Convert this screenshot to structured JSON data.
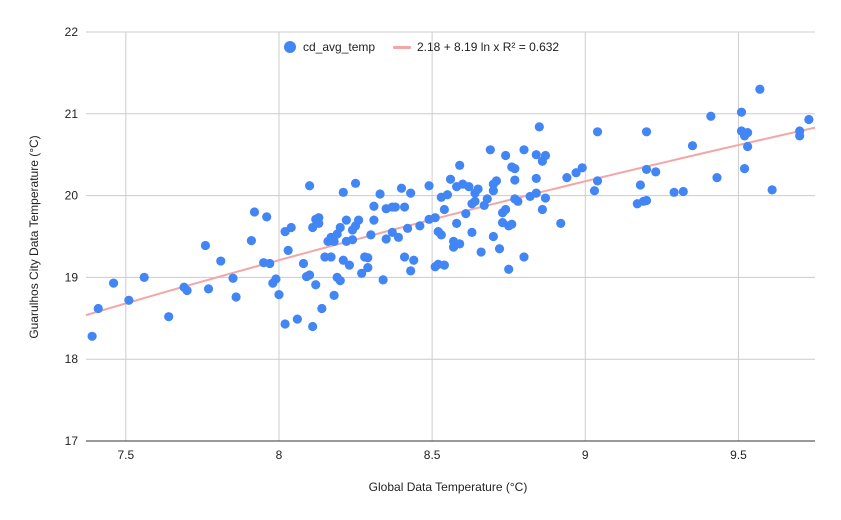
{
  "chart_data": {
    "type": "scatter",
    "title": "",
    "xlabel": "Global Data Temperature (°C)",
    "ylabel": "Guarulhos City Data Temperature (°C)",
    "xlim": [
      7.37,
      9.75
    ],
    "ylim": [
      17,
      22
    ],
    "x_ticks": [
      "7.5",
      "8",
      "8.5",
      "9",
      "9.5"
    ],
    "y_ticks": [
      "17",
      "18",
      "19",
      "20",
      "21",
      "22"
    ],
    "grid": true,
    "legend_position": "top",
    "legend": [
      "cd_avg_temp",
      "2.18 + 8.19 ln x R² = 0.632"
    ],
    "series": [
      {
        "name": "cd_avg_temp",
        "color": "#4285f4",
        "points": [
          [
            7.39,
            18.28
          ],
          [
            7.41,
            18.62
          ],
          [
            7.46,
            18.93
          ],
          [
            7.51,
            18.72
          ],
          [
            7.56,
            19.0
          ],
          [
            7.64,
            18.52
          ],
          [
            7.69,
            18.88
          ],
          [
            7.7,
            18.84
          ],
          [
            7.76,
            19.39
          ],
          [
            7.77,
            18.86
          ],
          [
            7.81,
            19.2
          ],
          [
            7.85,
            18.99
          ],
          [
            7.86,
            18.76
          ],
          [
            7.91,
            19.45
          ],
          [
            7.92,
            19.8
          ],
          [
            7.95,
            19.18
          ],
          [
            7.96,
            19.74
          ],
          [
            7.97,
            19.17
          ],
          [
            7.98,
            18.93
          ],
          [
            7.99,
            18.98
          ],
          [
            8.0,
            18.79
          ],
          [
            8.02,
            19.56
          ],
          [
            8.03,
            19.33
          ],
          [
            8.02,
            18.43
          ],
          [
            8.04,
            19.61
          ],
          [
            8.06,
            18.49
          ],
          [
            8.08,
            19.17
          ],
          [
            8.09,
            19.01
          ],
          [
            8.1,
            19.03
          ],
          [
            8.1,
            20.12
          ],
          [
            8.11,
            18.4
          ],
          [
            8.11,
            19.61
          ],
          [
            8.12,
            19.71
          ],
          [
            8.12,
            18.91
          ],
          [
            8.13,
            19.66
          ],
          [
            8.13,
            19.73
          ],
          [
            8.14,
            18.62
          ],
          [
            8.15,
            19.25
          ],
          [
            8.16,
            19.44
          ],
          [
            8.17,
            19.25
          ],
          [
            8.17,
            19.49
          ],
          [
            8.18,
            18.78
          ],
          [
            8.18,
            19.44
          ],
          [
            8.19,
            19.0
          ],
          [
            8.19,
            19.53
          ],
          [
            8.2,
            18.96
          ],
          [
            8.2,
            19.61
          ],
          [
            8.21,
            19.21
          ],
          [
            8.21,
            20.04
          ],
          [
            8.22,
            19.7
          ],
          [
            8.22,
            19.44
          ],
          [
            8.23,
            19.15
          ],
          [
            8.24,
            19.46
          ],
          [
            8.24,
            19.58
          ],
          [
            8.25,
            19.63
          ],
          [
            8.26,
            19.7
          ],
          [
            8.25,
            20.15
          ],
          [
            8.27,
            19.05
          ],
          [
            8.28,
            19.25
          ],
          [
            8.29,
            19.24
          ],
          [
            8.29,
            19.12
          ],
          [
            8.3,
            19.52
          ],
          [
            8.31,
            19.7
          ],
          [
            8.31,
            19.87
          ],
          [
            8.33,
            20.02
          ],
          [
            8.34,
            18.97
          ],
          [
            8.35,
            19.84
          ],
          [
            8.35,
            19.47
          ],
          [
            8.37,
            19.86
          ],
          [
            8.37,
            19.55
          ],
          [
            8.38,
            19.86
          ],
          [
            8.39,
            19.49
          ],
          [
            8.4,
            20.09
          ],
          [
            8.41,
            19.86
          ],
          [
            8.41,
            19.25
          ],
          [
            8.42,
            19.6
          ],
          [
            8.43,
            20.03
          ],
          [
            8.43,
            19.08
          ],
          [
            8.44,
            19.21
          ],
          [
            8.46,
            19.63
          ],
          [
            8.49,
            19.71
          ],
          [
            8.49,
            20.12
          ],
          [
            8.51,
            19.13
          ],
          [
            8.51,
            19.73
          ],
          [
            8.52,
            19.56
          ],
          [
            8.52,
            19.16
          ],
          [
            8.53,
            19.52
          ],
          [
            8.53,
            19.98
          ],
          [
            8.54,
            19.83
          ],
          [
            8.54,
            19.15
          ],
          [
            8.55,
            20.01
          ],
          [
            8.56,
            20.2
          ],
          [
            8.57,
            19.37
          ],
          [
            8.57,
            19.44
          ],
          [
            8.58,
            19.66
          ],
          [
            8.58,
            20.11
          ],
          [
            8.59,
            19.41
          ],
          [
            8.59,
            20.37
          ],
          [
            8.6,
            20.14
          ],
          [
            8.61,
            19.78
          ],
          [
            8.62,
            20.11
          ],
          [
            8.63,
            19.9
          ],
          [
            8.63,
            19.55
          ],
          [
            8.64,
            19.93
          ],
          [
            8.64,
            20.03
          ],
          [
            8.65,
            20.08
          ],
          [
            8.66,
            19.31
          ],
          [
            8.67,
            19.88
          ],
          [
            8.68,
            19.96
          ],
          [
            8.69,
            20.56
          ],
          [
            8.7,
            20.14
          ],
          [
            8.7,
            20.06
          ],
          [
            8.7,
            19.5
          ],
          [
            8.71,
            20.18
          ],
          [
            8.72,
            19.35
          ],
          [
            8.73,
            19.79
          ],
          [
            8.73,
            19.67
          ],
          [
            8.74,
            20.49
          ],
          [
            8.74,
            19.83
          ],
          [
            8.75,
            19.63
          ],
          [
            8.75,
            19.1
          ],
          [
            8.76,
            20.35
          ],
          [
            8.76,
            19.65
          ],
          [
            8.77,
            19.96
          ],
          [
            8.77,
            20.33
          ],
          [
            8.77,
            20.19
          ],
          [
            8.78,
            19.93
          ],
          [
            8.8,
            20.56
          ],
          [
            8.8,
            19.25
          ],
          [
            8.82,
            19.99
          ],
          [
            8.84,
            20.03
          ],
          [
            8.84,
            20.21
          ],
          [
            8.84,
            20.5
          ],
          [
            8.85,
            20.84
          ],
          [
            8.86,
            20.42
          ],
          [
            8.86,
            19.83
          ],
          [
            8.87,
            19.97
          ],
          [
            8.87,
            20.49
          ],
          [
            8.92,
            19.66
          ],
          [
            8.94,
            20.22
          ],
          [
            8.97,
            20.28
          ],
          [
            8.99,
            20.34
          ],
          [
            9.03,
            20.06
          ],
          [
            9.04,
            20.78
          ],
          [
            9.04,
            20.18
          ],
          [
            9.17,
            19.9
          ],
          [
            9.18,
            20.13
          ],
          [
            9.19,
            19.93
          ],
          [
            9.2,
            20.32
          ],
          [
            9.2,
            20.78
          ],
          [
            9.2,
            19.94
          ],
          [
            9.23,
            20.29
          ],
          [
            9.29,
            20.04
          ],
          [
            9.32,
            20.05
          ],
          [
            9.35,
            20.61
          ],
          [
            9.41,
            20.97
          ],
          [
            9.43,
            20.22
          ],
          [
            9.51,
            21.02
          ],
          [
            9.51,
            20.79
          ],
          [
            9.52,
            20.73
          ],
          [
            9.52,
            20.33
          ],
          [
            9.53,
            20.77
          ],
          [
            9.53,
            20.6
          ],
          [
            9.57,
            21.3
          ],
          [
            9.61,
            20.07
          ],
          [
            9.7,
            20.79
          ],
          [
            9.7,
            20.73
          ],
          [
            9.73,
            20.93
          ]
        ]
      },
      {
        "name": "2.18 + 8.19 ln x R² = 0.632",
        "color": "#f4a6a6",
        "trendline": {
          "intercept": 2.18,
          "coefficient": 8.19,
          "function": "log"
        }
      }
    ]
  }
}
